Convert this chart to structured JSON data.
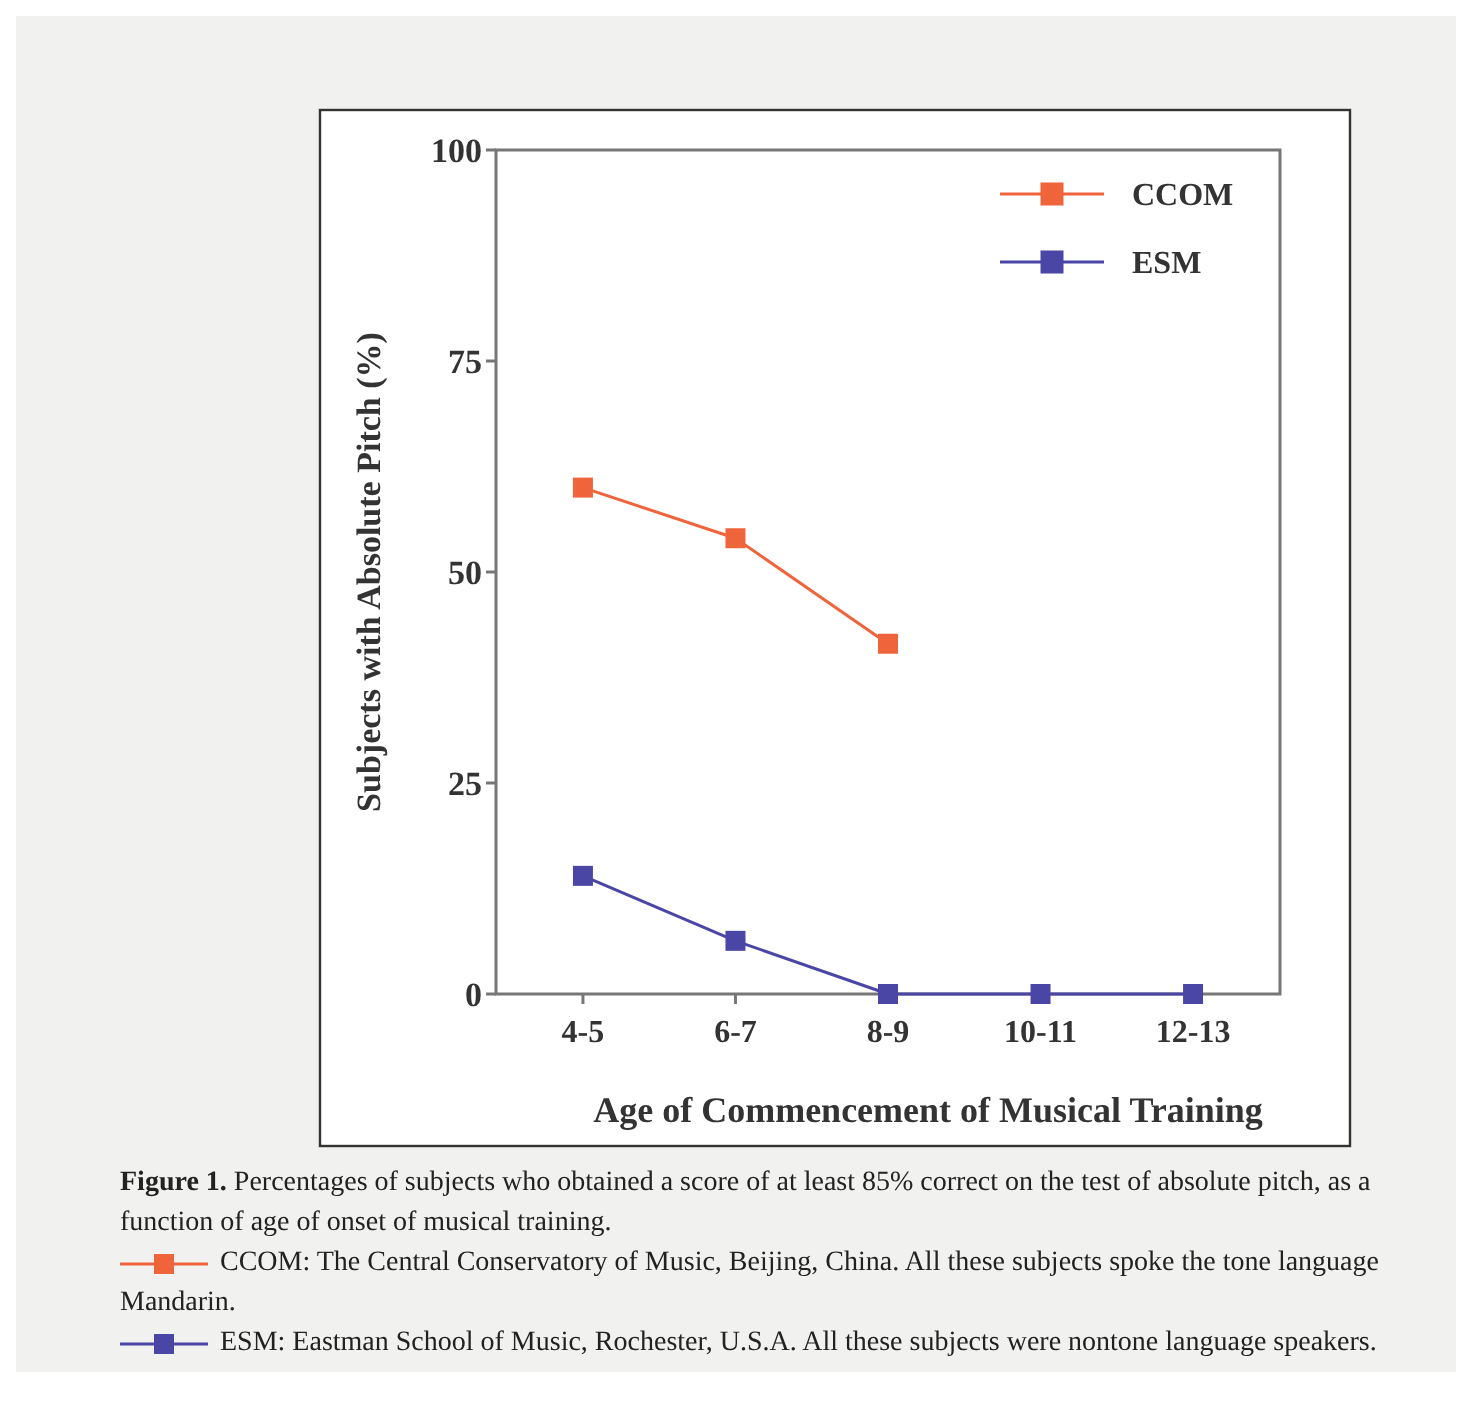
{
  "chart_data": {
    "type": "line",
    "xlabel": "Age of Commencement of Musical Training",
    "ylabel": "Subjects with Absolute Pitch (%)",
    "categories": [
      "4-5",
      "6-7",
      "8-9",
      "10-11",
      "12-13"
    ],
    "series": [
      {
        "name": "CCOM",
        "color": "#f0643c",
        "values": [
          60,
          54,
          41.5,
          null,
          null
        ]
      },
      {
        "name": "ESM",
        "color": "#4a46a6",
        "values": [
          14,
          6.3,
          0,
          0,
          0
        ]
      }
    ],
    "ylim": [
      0,
      100
    ],
    "yticks": [
      0,
      25,
      50,
      75,
      100
    ],
    "grid": false,
    "legend": "top right",
    "marker": "square",
    "line_style": "solid",
    "annotations": [
      "Figure 1. Percentages of subjects who obtained a score of at least 85% correct on the test of absolute pitch, as a function of age of onset of musical training.",
      "CCOM: The Central Conservatory of Music, Beijing, China. All these subjects spoke the tone language Mandarin.",
      "ESM: Eastman School of Music, Rochester, U.S.A. All these subjects were nontone language speakers."
    ]
  }
}
